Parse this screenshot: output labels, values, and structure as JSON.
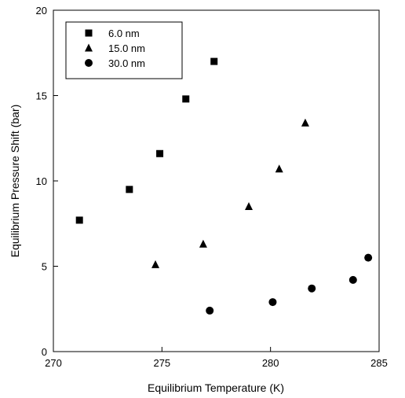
{
  "chart_data": {
    "type": "scatter",
    "xlabel": "Equilibrium Temperature (K)",
    "ylabel": "Equilibrium Pressure Shift (bar)",
    "xlim": [
      270,
      285
    ],
    "ylim": [
      0,
      20
    ],
    "xticks": [
      "270",
      "275",
      "280",
      "285"
    ],
    "yticks": [
      "0",
      "5",
      "10",
      "15",
      "20"
    ],
    "grid": false,
    "legend_position": "top-left",
    "series": [
      {
        "name": "6.0 nm",
        "marker": "square",
        "color": "#000000",
        "points": [
          [
            271.2,
            7.7
          ],
          [
            273.5,
            9.5
          ],
          [
            274.9,
            11.6
          ],
          [
            276.1,
            14.8
          ],
          [
            277.4,
            17.0
          ]
        ]
      },
      {
        "name": "15.0 nm",
        "marker": "triangle",
        "color": "#000000",
        "points": [
          [
            274.7,
            5.1
          ],
          [
            276.9,
            6.3
          ],
          [
            279.0,
            8.5
          ],
          [
            280.4,
            10.7
          ],
          [
            281.6,
            13.4
          ]
        ]
      },
      {
        "name": "30.0 nm",
        "marker": "circle",
        "color": "#000000",
        "points": [
          [
            277.2,
            2.4
          ],
          [
            280.1,
            2.9
          ],
          [
            281.9,
            3.7
          ],
          [
            283.8,
            4.2
          ],
          [
            284.5,
            5.5
          ]
        ]
      }
    ]
  }
}
